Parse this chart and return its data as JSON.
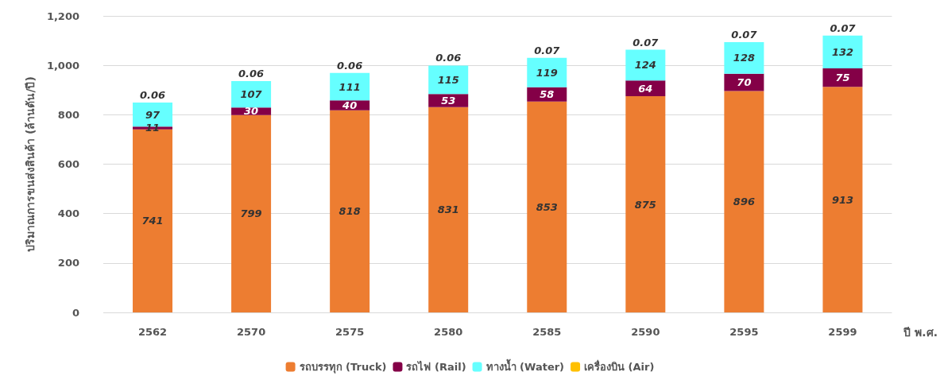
{
  "chart_data": {
    "type": "bar",
    "stacked": true,
    "ylabel": "ปริมาณการขนส่งสินค้า (ล้านตัน/ปี)",
    "xlabel": "ปี พ.ศ.",
    "categories": [
      "2562",
      "2570",
      "2575",
      "2580",
      "2585",
      "2590",
      "2595",
      "2599"
    ],
    "series": [
      {
        "name": "รถบรรทุก (Truck)",
        "color": "#ed7d31",
        "values": [
          741,
          799,
          818,
          831,
          853,
          875,
          896,
          913
        ]
      },
      {
        "name": "รถไฟ (Rail)",
        "color": "#840047",
        "values": [
          11,
          30,
          40,
          53,
          58,
          64,
          70,
          75
        ]
      },
      {
        "name": "ทางน้ำ (Water)",
        "color": "#66ffff",
        "values": [
          97,
          107,
          111,
          115,
          119,
          124,
          128,
          132
        ]
      },
      {
        "name": "เครื่องบิน (Air)",
        "color": "#ffc000",
        "values": [
          0.06,
          0.06,
          0.06,
          0.06,
          0.07,
          0.07,
          0.07,
          0.07
        ]
      }
    ],
    "ylim": [
      0,
      1200
    ],
    "yticks": [
      {
        "value": 0,
        "label": "0"
      },
      {
        "value": 200,
        "label": "200"
      },
      {
        "value": 400,
        "label": "400"
      },
      {
        "value": 600,
        "label": "600"
      },
      {
        "value": 800,
        "label": "800"
      },
      {
        "value": 1000,
        "label": "1,000"
      },
      {
        "value": 1200,
        "label": "1,200"
      }
    ],
    "grid": "y",
    "legend": "bottom",
    "data_labels": true
  }
}
